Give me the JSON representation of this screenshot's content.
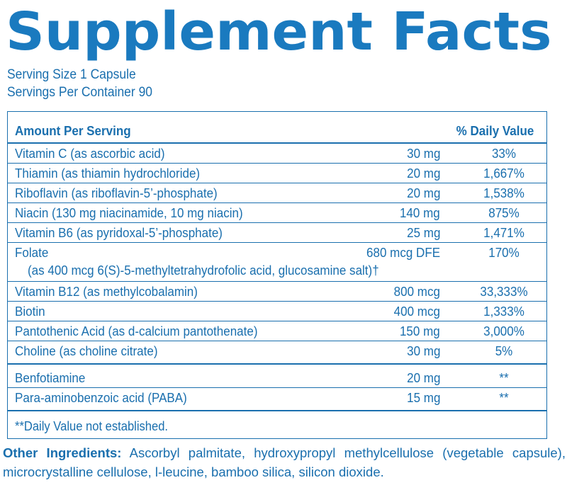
{
  "title": "Supplement Facts",
  "serving_size": "Serving Size 1 Capsule",
  "servings_per_container": "Servings Per Container 90",
  "header": {
    "amount_label": "Amount Per Serving",
    "dv_label": "% Daily Value"
  },
  "nutrients": [
    {
      "name": "Vitamin C (as ascorbic acid)",
      "amount": "30 mg",
      "dv": "33%"
    },
    {
      "name": "Thiamin (as thiamin hydrochloride)",
      "amount": "20 mg",
      "dv": "1,667%"
    },
    {
      "name": "Riboflavin (as riboflavin-5’-phosphate)",
      "amount": "20 mg",
      "dv": "1,538%"
    },
    {
      "name": "Niacin (130 mg niacinamide, 10 mg niacin)",
      "amount": "140 mg",
      "dv": "875%"
    },
    {
      "name": "Vitamin B6 (as pyridoxal-5’-phosphate)",
      "amount": "25 mg",
      "dv": "1,471%"
    },
    {
      "name": "Folate",
      "amount": "680 mcg DFE",
      "dv": "170%"
    },
    {
      "name": "Vitamin B12 (as methylcobalamin)",
      "amount": "800 mcg",
      "dv": "33,333%"
    },
    {
      "name": "Biotin",
      "amount": "400 mcg",
      "dv": "1,333%"
    },
    {
      "name": "Pantothenic Acid (as d-calcium pantothenate)",
      "amount": "150 mg",
      "dv": "3,000%"
    },
    {
      "name": "Choline (as choline citrate)",
      "amount": "30 mg",
      "dv": "5%"
    }
  ],
  "folate_detail": "(as 400 mcg 6(S)-5-methyltetrahydrofolic acid, glucosamine salt)†",
  "other_nutrients": [
    {
      "name": "Benfotiamine",
      "amount": "20 mg",
      "dv": "**"
    },
    {
      "name": "Para-aminobenzoic acid (PABA)",
      "amount": "15 mg",
      "dv": "**"
    }
  ],
  "footnote": "**Daily Value not established.",
  "other_ingredients": {
    "label": "Other Ingredients:",
    "text": "Ascorbyl palmitate, hydroxypropyl methylcellulose (vegetable capsule), microcrystalline cellulose, l-leucine, bamboo silica, silicon dioxide."
  },
  "colors": {
    "primary": "#1a6fae",
    "title": "#1a7abf",
    "background": "#ffffff"
  }
}
